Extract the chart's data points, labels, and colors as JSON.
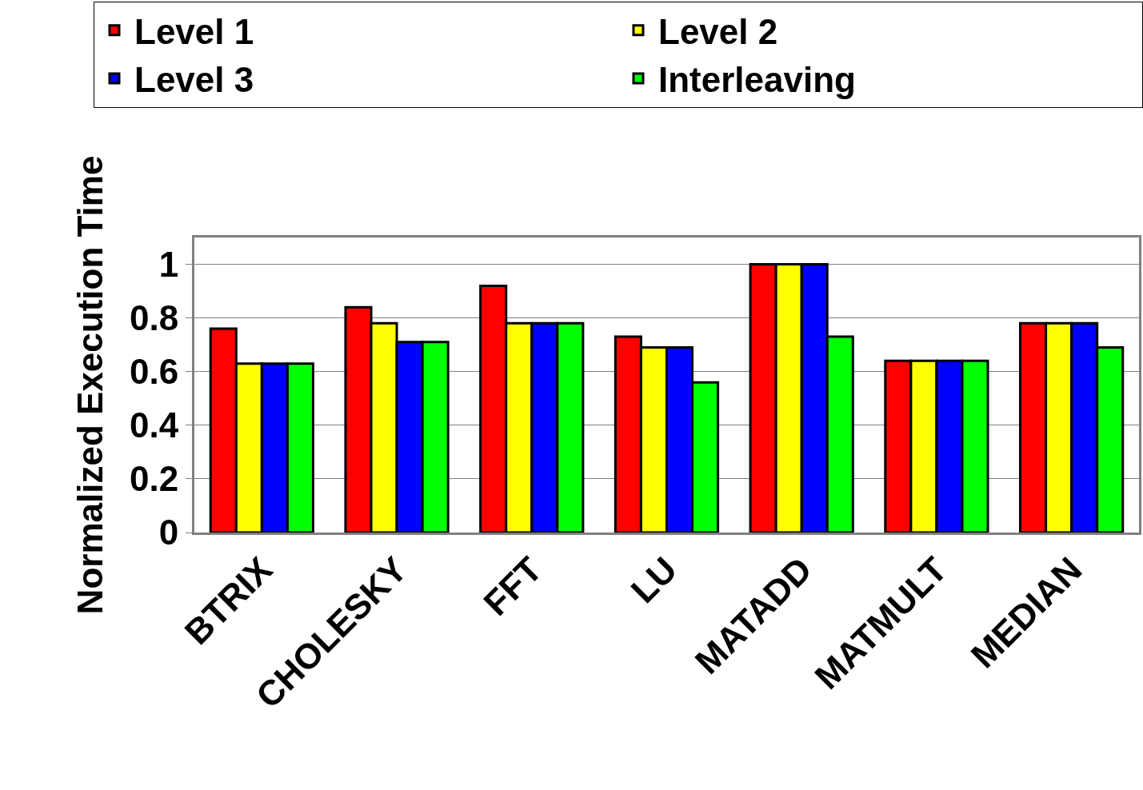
{
  "chart_data": {
    "type": "bar",
    "ylabel": "Normalized Execution Time",
    "categories": [
      "BTRIX",
      "CHOLESKY",
      "FFT",
      "LU",
      "MATADD",
      "MATMULT",
      "MEDIAN"
    ],
    "series": [
      {
        "name": "Level 1",
        "color": "#ff0000",
        "values": [
          0.76,
          0.84,
          0.92,
          0.73,
          1.0,
          0.64,
          0.78
        ]
      },
      {
        "name": "Level 2",
        "color": "#ffff00",
        "values": [
          0.63,
          0.78,
          0.78,
          0.69,
          1.0,
          0.64,
          0.78
        ]
      },
      {
        "name": "Level 3",
        "color": "#0000ff",
        "values": [
          0.63,
          0.71,
          0.78,
          0.69,
          1.0,
          0.64,
          0.78
        ]
      },
      {
        "name": "Interleaving",
        "color": "#00ff00",
        "values": [
          0.63,
          0.71,
          0.78,
          0.56,
          0.73,
          0.64,
          0.69
        ]
      }
    ],
    "ylim": [
      0,
      1.1
    ],
    "yticks": [
      0,
      0.2,
      0.4,
      0.6,
      0.8,
      1
    ],
    "grid": "y",
    "legend": "top"
  }
}
